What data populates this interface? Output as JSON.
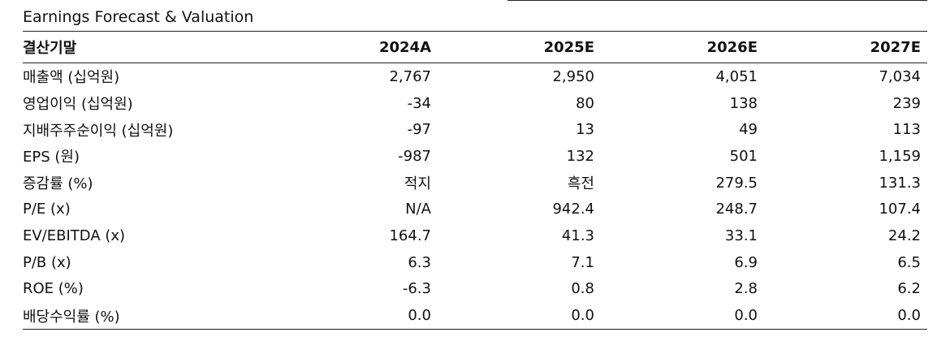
{
  "title": "Earnings Forecast & Valuation",
  "table": {
    "header": {
      "label": "결산기말",
      "years": [
        "2024A",
        "2025E",
        "2026E",
        "2027E"
      ]
    },
    "rows": [
      {
        "label": "매출액 (십억원)",
        "values": [
          "2,767",
          "2,950",
          "4,051",
          "7,034"
        ]
      },
      {
        "label": "영업이익 (십억원)",
        "values": [
          "-34",
          "80",
          "138",
          "239"
        ]
      },
      {
        "label": "지배주주순이익 (십억원)",
        "values": [
          "-97",
          "13",
          "49",
          "113"
        ]
      },
      {
        "label": "EPS (원)",
        "values": [
          "-987",
          "132",
          "501",
          "1,159"
        ]
      },
      {
        "label": "증감률 (%)",
        "values": [
          "적지",
          "흑전",
          "279.5",
          "131.3"
        ]
      },
      {
        "label": "P/E (x)",
        "values": [
          "N/A",
          "942.4",
          "248.7",
          "107.4"
        ]
      },
      {
        "label": "EV/EBITDA (x)",
        "values": [
          "164.7",
          "41.3",
          "33.1",
          "24.2"
        ]
      },
      {
        "label": "P/B (x)",
        "values": [
          "6.3",
          "7.1",
          "6.9",
          "6.5"
        ]
      },
      {
        "label": "ROE (%)",
        "values": [
          "-6.3",
          "0.8",
          "2.8",
          "6.2"
        ]
      },
      {
        "label": "배당수익률 (%)",
        "values": [
          "0.0",
          "0.0",
          "0.0",
          "0.0"
        ]
      }
    ]
  }
}
